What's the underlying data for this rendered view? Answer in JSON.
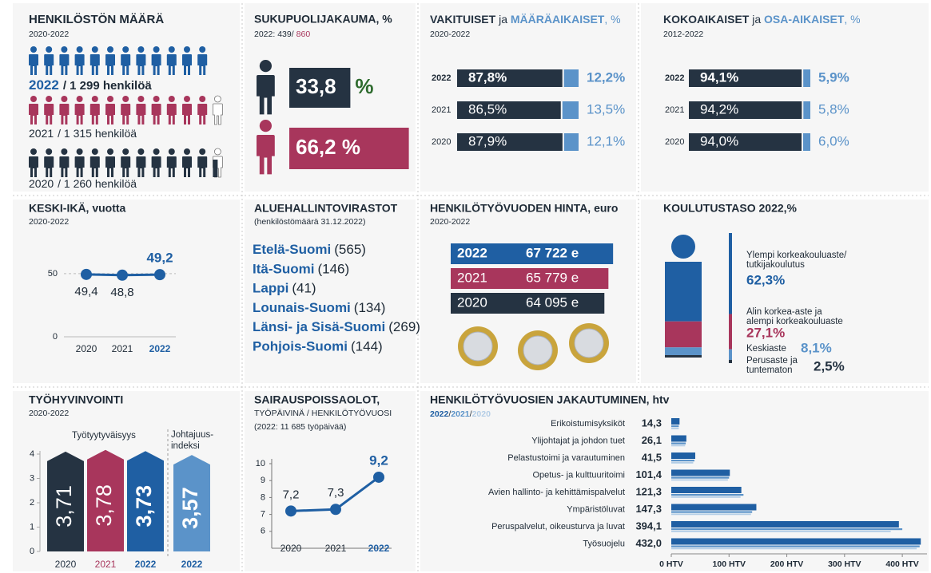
{
  "headcount": {
    "title": "HENKILÖSTÖN MÄÄRÄ",
    "subtitle": "2020-2022",
    "rows": [
      {
        "year": "2022",
        "text": "/ 1 299 henkilöä"
      },
      {
        "year": "2021",
        "text": "/ 1 315 henkilöä"
      },
      {
        "year": "2020",
        "text": "/ 1 260 henkilöä"
      }
    ]
  },
  "regions": {
    "title": "ALUEHALLINTOVIRASTOT",
    "subtitle": "(henkilöstömäärä 31.12.2022)",
    "items": [
      {
        "name": "Etelä-Suomi",
        "count": "(565)"
      },
      {
        "name": "Itä-Suomi",
        "count": "(146)"
      },
      {
        "name": "Lappi",
        "count": "(41)"
      },
      {
        "name": "Lounais-Suomi",
        "count": "(134)"
      },
      {
        "name": "Länsi- ja Sisä-Suomi",
        "count": "(269)"
      },
      {
        "name": "Pohjois-Suomi",
        "count": "(144)"
      }
    ]
  },
  "chart_data": [
    {
      "type": "pictogram",
      "title": "SUKUPUOLIJAKAUMA, %",
      "subtitle": "2022: 439/",
      "subtitle_highlight": "860",
      "values": [
        33.8,
        66.2
      ],
      "value_labels": [
        "33,8",
        "66,2 %"
      ],
      "unit_label": "%",
      "colors": [
        "#253342",
        "#a8365c"
      ],
      "unit_color": "#2e6b2e"
    },
    {
      "type": "stacked",
      "title_parts": [
        "VAKITUISET",
        " ja ",
        "MÄÄRÄAIKAISET",
        ", %"
      ],
      "subtitle": "2020-2022",
      "categories": [
        "2022",
        "2021",
        "2020"
      ],
      "xlim": [
        0,
        100
      ],
      "series": [
        {
          "color": "#253342",
          "values": [
            87.8,
            86.5,
            87.9
          ],
          "value_labels": [
            "87,8%",
            "86,5%",
            "87,9%"
          ]
        },
        {
          "color": "#5b93c9",
          "values": [
            12.2,
            13.5,
            12.1
          ],
          "value_labels": [
            "12,2%",
            "13,5%",
            "12,1%"
          ]
        }
      ]
    },
    {
      "type": "stacked",
      "title_parts": [
        "KOKOAIKAISET",
        " ja ",
        "OSA-AIKAISET",
        ", %"
      ],
      "subtitle": "2012-2022",
      "categories": [
        "2022",
        "2021",
        "2020"
      ],
      "xlim": [
        0,
        100
      ],
      "series": [
        {
          "color": "#253342",
          "values": [
            94.1,
            94.2,
            94.0
          ],
          "value_labels": [
            "94,1%",
            "94,2%",
            "94,0%"
          ]
        },
        {
          "color": "#5b93c9",
          "values": [
            5.9,
            5.8,
            6.0
          ],
          "value_labels": [
            "5,9%",
            "5,8%",
            "6,0%"
          ]
        }
      ]
    },
    {
      "type": "line",
      "title": "KESKI-IKÄ, vuotta",
      "subtitle": "2020-2022",
      "categories": [
        "2020",
        "2021",
        "2022"
      ],
      "values": [
        49.4,
        48.8,
        49.2
      ],
      "value_labels": [
        "49,4",
        "48,8",
        "49,2"
      ],
      "color": "#1f5fa3",
      "ylim": [
        0,
        55
      ],
      "yticks": [
        0,
        50
      ],
      "grid": true
    },
    {
      "type": "hbar",
      "title": "HENKILÖTYÖVUODEN HINTA, euro",
      "subtitle": "2020-2022",
      "categories": [
        "2022",
        "2021",
        "2020"
      ],
      "values": [
        67722,
        65779,
        64095
      ],
      "value_labels": [
        "67 722 e",
        "65 779 e",
        "64 095 e"
      ],
      "colors": [
        "#1f5fa3",
        "#a8365c",
        "#253342"
      ],
      "xlim": [
        0,
        70000
      ]
    },
    {
      "type": "figure",
      "title": "KOULUTUSTASO 2022,%",
      "categories": [
        [
          "Ylempi korkeakouluaste/",
          "tutkijakoulutus"
        ],
        [
          "Alin korkea-aste ja",
          "alempi korkeakouluaste"
        ],
        [
          "Keskiaste"
        ],
        [
          "Perusaste ja",
          "tuntematon"
        ]
      ],
      "values": [
        62.3,
        27.1,
        8.1,
        2.5
      ],
      "value_labels": [
        "62,3%",
        "27,1%",
        "8,1%",
        "2,5%"
      ],
      "colors": [
        "#1f5fa3",
        "#a8365c",
        "#5b93c9",
        "#253342"
      ],
      "ylim": [
        0,
        100
      ]
    },
    {
      "type": "column",
      "title": "TYÖHYVINVOINTI",
      "subtitle": "2020-2022",
      "group_labels": [
        [
          "Työtyytyväisyys"
        ],
        [
          "Johtajuus-",
          "indeksi"
        ]
      ],
      "categories": [
        "2020",
        "2021",
        "2022",
        "2022"
      ],
      "values": [
        3.71,
        3.78,
        3.73,
        3.57
      ],
      "value_labels": [
        "3,71",
        "3,78",
        "3,73",
        "3,57"
      ],
      "colors": [
        "#253342",
        "#a8365c",
        "#1f5fa3",
        "#5b93c9"
      ],
      "ylim": [
        0,
        4
      ],
      "yticks": [
        0,
        1,
        2,
        3,
        4
      ]
    },
    {
      "type": "line",
      "title": "SAIRAUSPOISSAOLOT,",
      "subtitle": "TYÖPÄIVINÄ / HENKILÖTYÖVUOSI",
      "note": "(2022: 11 685 työpäivää)",
      "categories": [
        "2020",
        "2021",
        "2022"
      ],
      "values": [
        7.2,
        7.3,
        9.2
      ],
      "value_labels": [
        "7,2",
        "7,3",
        "9,2"
      ],
      "color": "#1f5fa3",
      "ylim": [
        5,
        10
      ],
      "yticks": [
        6,
        7,
        8,
        9,
        10
      ],
      "grid": false
    },
    {
      "type": "grouped",
      "title": "HENKILÖTYÖVUOSIEN JAKAUTUMINEN, htv",
      "legend_separator": "/",
      "categories": [
        "Erikoistumisyksiköt",
        "Ylijohtajat ja johdon tuet",
        "Pelastustoimi ja varautuminen",
        "Opetus- ja kulttuuritoimi",
        "Avien hallinto- ja kehittämispalvelut",
        "Ympäristöluvat",
        "Peruspalvelut, oikeusturva ja luvat",
        "Työsuojelu"
      ],
      "series": [
        {
          "name": "2022",
          "color": "#1f5fa3",
          "values": [
            14.3,
            26.1,
            41.5,
            101.4,
            121.3,
            147.3,
            394.1,
            432.0
          ],
          "value_labels": [
            "14,3",
            "26,1",
            "41,5",
            "101,4",
            "121,3",
            "147,3",
            "394,1",
            "432,0"
          ]
        },
        {
          "name": "2021",
          "color": "#5b93c9",
          "values": [
            13,
            25,
            40,
            100,
            125,
            140,
            400,
            430
          ]
        },
        {
          "name": "2020",
          "color": "#b3cde6",
          "values": [
            13,
            24,
            38,
            98,
            120,
            138,
            380,
            425
          ]
        }
      ],
      "xlim": [
        0,
        440
      ],
      "xticks": [
        {
          "value": 0,
          "label": "0 HTV"
        },
        {
          "value": 100,
          "label": "100 HTV"
        },
        {
          "value": 200,
          "label": "200 HTV"
        },
        {
          "value": 300,
          "label": "300 HTV"
        },
        {
          "value": 400,
          "label": "400 HTV"
        }
      ]
    }
  ]
}
